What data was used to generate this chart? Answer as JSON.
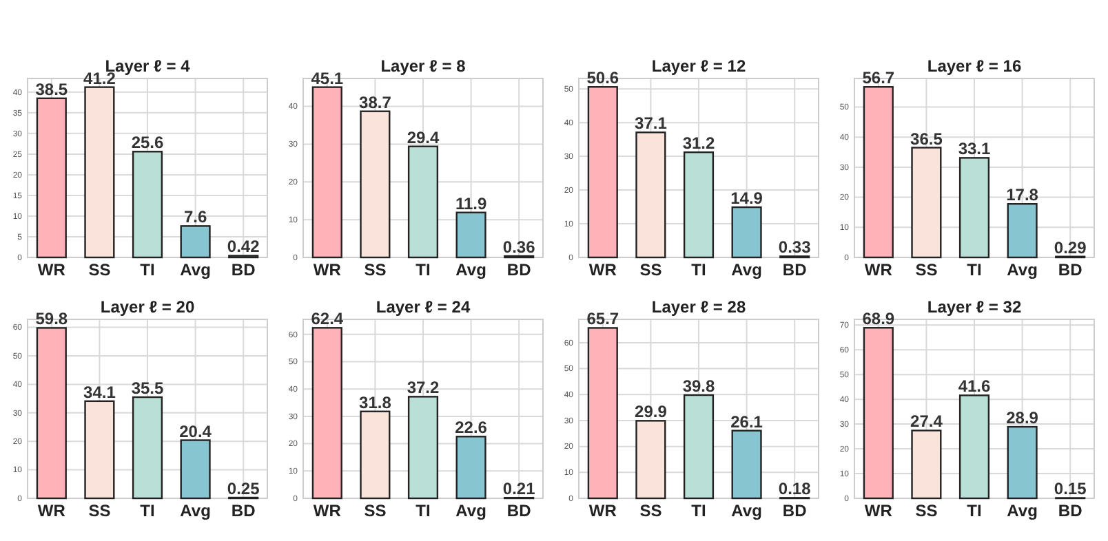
{
  "chart_data": [
    {
      "type": "bar",
      "title": "Layer ℓ = 4",
      "categories": [
        "WR",
        "SS",
        "TI",
        "Avg",
        "BD"
      ],
      "values": [
        38.5,
        41.2,
        25.6,
        7.6,
        0.42
      ],
      "colors": [
        "#ffb3b8",
        "#fae3da",
        "#badfd6",
        "#87c5d1",
        "#87c5d1"
      ],
      "ylim": [
        0,
        43.3
      ],
      "yticks": [
        0,
        5,
        10,
        15,
        20,
        25,
        30,
        35,
        40
      ],
      "grid": true,
      "data_labels": true
    },
    {
      "type": "bar",
      "title": "Layer ℓ = 8",
      "categories": [
        "WR",
        "SS",
        "TI",
        "Avg",
        "BD"
      ],
      "values": [
        45.1,
        38.7,
        29.4,
        11.9,
        0.36
      ],
      "colors": [
        "#ffb3b8",
        "#fae3da",
        "#badfd6",
        "#87c5d1",
        "#87c5d1"
      ],
      "ylim": [
        0,
        47.4
      ],
      "yticks": [
        0,
        10,
        20,
        30,
        40
      ],
      "grid": true,
      "data_labels": true
    },
    {
      "type": "bar",
      "title": "Layer ℓ = 12",
      "categories": [
        "WR",
        "SS",
        "TI",
        "Avg",
        "BD"
      ],
      "values": [
        50.6,
        37.1,
        31.2,
        14.9,
        0.33
      ],
      "colors": [
        "#ffb3b8",
        "#fae3da",
        "#badfd6",
        "#87c5d1",
        "#87c5d1"
      ],
      "ylim": [
        0,
        53.1
      ],
      "yticks": [
        0,
        10,
        20,
        30,
        40,
        50
      ],
      "grid": true,
      "data_labels": true
    },
    {
      "type": "bar",
      "title": "Layer ℓ = 16",
      "categories": [
        "WR",
        "SS",
        "TI",
        "Avg",
        "BD"
      ],
      "values": [
        56.7,
        36.5,
        33.1,
        17.8,
        0.29
      ],
      "colors": [
        "#ffb3b8",
        "#fae3da",
        "#badfd6",
        "#87c5d1",
        "#87c5d1"
      ],
      "ylim": [
        0,
        59.5
      ],
      "yticks": [
        0,
        10,
        20,
        30,
        40,
        50
      ],
      "grid": true,
      "data_labels": true
    },
    {
      "type": "bar",
      "title": "Layer ℓ = 20",
      "categories": [
        "WR",
        "SS",
        "TI",
        "Avg",
        "BD"
      ],
      "values": [
        59.8,
        34.1,
        35.5,
        20.4,
        0.25
      ],
      "colors": [
        "#ffb3b8",
        "#fae3da",
        "#badfd6",
        "#87c5d1",
        "#87c5d1"
      ],
      "ylim": [
        0,
        62.8
      ],
      "yticks": [
        0,
        10,
        20,
        30,
        40,
        50,
        60
      ],
      "grid": true,
      "data_labels": true
    },
    {
      "type": "bar",
      "title": "Layer ℓ = 24",
      "categories": [
        "WR",
        "SS",
        "TI",
        "Avg",
        "BD"
      ],
      "values": [
        62.4,
        31.8,
        37.2,
        22.6,
        0.21
      ],
      "colors": [
        "#ffb3b8",
        "#fae3da",
        "#badfd6",
        "#87c5d1",
        "#87c5d1"
      ],
      "ylim": [
        0,
        65.5
      ],
      "yticks": [
        0,
        10,
        20,
        30,
        40,
        50,
        60
      ],
      "grid": true,
      "data_labels": true
    },
    {
      "type": "bar",
      "title": "Layer ℓ = 28",
      "categories": [
        "WR",
        "SS",
        "TI",
        "Avg",
        "BD"
      ],
      "values": [
        65.7,
        29.9,
        39.8,
        26.1,
        0.18
      ],
      "colors": [
        "#ffb3b8",
        "#fae3da",
        "#badfd6",
        "#87c5d1",
        "#87c5d1"
      ],
      "ylim": [
        0,
        69
      ],
      "yticks": [
        0,
        10,
        20,
        30,
        40,
        50,
        60
      ],
      "grid": true,
      "data_labels": true
    },
    {
      "type": "bar",
      "title": "Layer ℓ = 32",
      "categories": [
        "WR",
        "SS",
        "TI",
        "Avg",
        "BD"
      ],
      "values": [
        68.9,
        27.4,
        41.6,
        28.9,
        0.15
      ],
      "colors": [
        "#ffb3b8",
        "#fae3da",
        "#badfd6",
        "#87c5d1",
        "#87c5d1"
      ],
      "ylim": [
        0,
        72.3
      ],
      "yticks": [
        0,
        10,
        20,
        30,
        40,
        50,
        60,
        70
      ],
      "grid": true,
      "data_labels": true
    }
  ]
}
